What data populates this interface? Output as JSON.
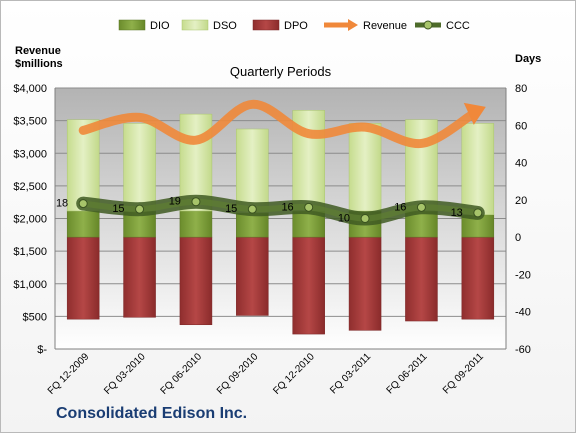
{
  "chart_data": {
    "type": "bar",
    "title": "Quarterly Periods",
    "company": "Consolidated Edison Inc.",
    "ylabel_left": [
      "Revenue",
      "$millions"
    ],
    "ylabel_right": "Days",
    "categories": [
      "FQ 12-2009",
      "FQ 03-2010",
      "FQ 06-2010",
      "FQ 09-2010",
      "FQ 12-2010",
      "FQ 03-2011",
      "FQ 06-2011",
      "FQ 09-2011"
    ],
    "left_axis": {
      "range": [
        0,
        4000
      ],
      "ticks": [
        "$-",
        "$500",
        "$1,000",
        "$1,500",
        "$2,000",
        "$2,500",
        "$3,000",
        "$3,500",
        "$4,000"
      ]
    },
    "right_axis": {
      "range": [
        -60,
        80
      ],
      "ticks": [
        "-60",
        "-40",
        "-20",
        "0",
        "20",
        "40",
        "60",
        "80"
      ]
    },
    "legend_position": "top",
    "series": [
      {
        "name": "DIO",
        "axis": "right",
        "kind": "stacked-bar",
        "color": "#7a9a35",
        "values": [
          14,
          14,
          14,
          13,
          14,
          14,
          14,
          12
        ]
      },
      {
        "name": "DSO",
        "axis": "right",
        "kind": "stacked-bar",
        "color": "#d6e8a8",
        "values": [
          49,
          47,
          52,
          45,
          54,
          47,
          49,
          49
        ]
      },
      {
        "name": "DPO",
        "axis": "right",
        "kind": "stacked-bar-negative",
        "color": "#a8393a",
        "values": [
          -44,
          -43,
          -47,
          -42,
          -52,
          -50,
          -45,
          -44
        ]
      },
      {
        "name": "Revenue",
        "axis": "left",
        "kind": "line",
        "color": "#f0883a",
        "values": [
          3350,
          3550,
          3200,
          3750,
          3300,
          3400,
          3150,
          3650
        ]
      },
      {
        "name": "CCC",
        "axis": "right",
        "kind": "line",
        "color": "#4d6b2a",
        "values": [
          18,
          15,
          19,
          15,
          16,
          10,
          16,
          13
        ],
        "labels": [
          "18",
          "15",
          "19",
          "15",
          "16",
          "10",
          "16",
          "13"
        ]
      }
    ]
  }
}
